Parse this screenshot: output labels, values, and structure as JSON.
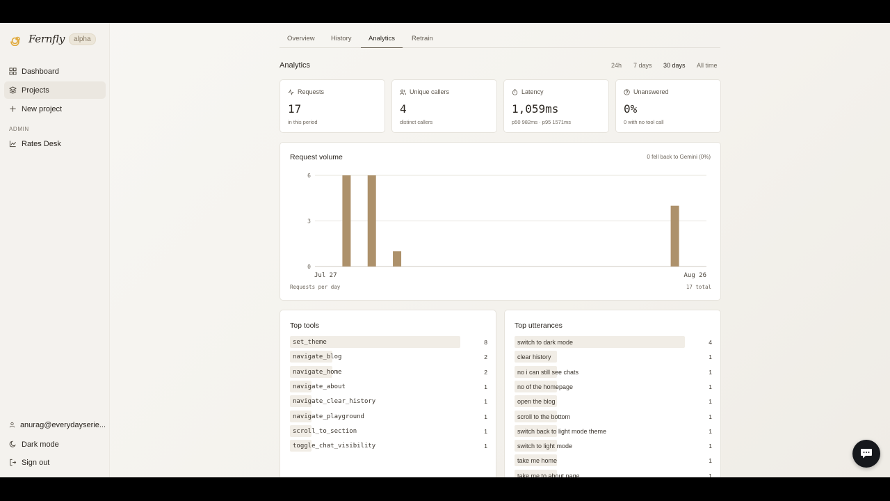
{
  "app": {
    "name": "Fernfly",
    "badge": "alpha"
  },
  "sidebar": {
    "items": [
      {
        "label": "Dashboard",
        "icon": "dashboard-icon"
      },
      {
        "label": "Projects",
        "icon": "layers-icon"
      },
      {
        "label": "New project",
        "icon": "plus-icon"
      }
    ],
    "admin_label": "ADMIN",
    "admin_items": [
      {
        "label": "Rates Desk",
        "icon": "chart-line-icon"
      }
    ],
    "footer": [
      {
        "label": "anurag@everydayserie...",
        "icon": "user-icon"
      },
      {
        "label": "Dark mode",
        "icon": "moon-icon"
      },
      {
        "label": "Sign out",
        "icon": "sign-out-icon"
      }
    ]
  },
  "tabs": [
    {
      "label": "Overview"
    },
    {
      "label": "History"
    },
    {
      "label": "Analytics",
      "active": true
    },
    {
      "label": "Retrain"
    }
  ],
  "analytics": {
    "title": "Analytics",
    "ranges": [
      "24h",
      "7 days",
      "30 days",
      "All time"
    ],
    "selected_range": "30 days"
  },
  "stats": [
    {
      "label": "Requests",
      "value": "17",
      "sub": "in this period",
      "icon": "activity-icon"
    },
    {
      "label": "Unique callers",
      "value": "4",
      "sub": "distinct callers",
      "icon": "users-icon"
    },
    {
      "label": "Latency",
      "value": "1,059ms",
      "sub": "p50 982ms · p95 1571ms",
      "icon": "timer-icon"
    },
    {
      "label": "Unanswered",
      "value": "0%",
      "sub": "0 with no tool call",
      "icon": "help-circle-icon"
    }
  ],
  "request_volume": {
    "title": "Request volume",
    "note": "0 fell back to Gemini (0%)",
    "caption": "Requests per day",
    "total": "17 total"
  },
  "chart_data": {
    "type": "bar",
    "x_start": "Jul 27",
    "x_end": "Aug 26",
    "categories": [
      "Jul 27",
      "Jul 28",
      "Jul 29",
      "Jul 30",
      "Jul 31",
      "Aug 1",
      "Aug 2",
      "Aug 3",
      "Aug 4",
      "Aug 5",
      "Aug 6",
      "Aug 7",
      "Aug 8",
      "Aug 9",
      "Aug 10",
      "Aug 11",
      "Aug 12",
      "Aug 13",
      "Aug 14",
      "Aug 15",
      "Aug 16",
      "Aug 17",
      "Aug 18",
      "Aug 19",
      "Aug 20",
      "Aug 21",
      "Aug 22",
      "Aug 23",
      "Aug 24",
      "Aug 25",
      "Aug 26"
    ],
    "values": [
      0,
      0,
      6,
      0,
      6,
      0,
      1,
      0,
      0,
      0,
      0,
      0,
      0,
      0,
      0,
      0,
      0,
      0,
      0,
      0,
      0,
      0,
      0,
      0,
      0,
      0,
      0,
      0,
      4,
      0,
      0
    ],
    "y_ticks": [
      0,
      3,
      6
    ],
    "ylim": [
      0,
      6
    ],
    "grid": true,
    "bar_color": "#ad916b"
  },
  "top_tools": {
    "title": "Top tools",
    "rows": [
      {
        "label": "set_theme",
        "count": 8
      },
      {
        "label": "navigate_blog",
        "count": 2
      },
      {
        "label": "navigate_home",
        "count": 2
      },
      {
        "label": "navigate_about",
        "count": 1
      },
      {
        "label": "navigate_clear_history",
        "count": 1
      },
      {
        "label": "navigate_playground",
        "count": 1
      },
      {
        "label": "scroll_to_section",
        "count": 1
      },
      {
        "label": "toggle_chat_visibility",
        "count": 1
      }
    ]
  },
  "top_utterances": {
    "title": "Top utterances",
    "rows": [
      {
        "label": "switch to dark mode",
        "count": 4
      },
      {
        "label": "clear history",
        "count": 1
      },
      {
        "label": "no i can still see chats",
        "count": 1
      },
      {
        "label": "no of the homepage",
        "count": 1
      },
      {
        "label": "open the blog",
        "count": 1
      },
      {
        "label": "scroll to the bottom",
        "count": 1
      },
      {
        "label": "switch back to light mode theme",
        "count": 1
      },
      {
        "label": "switch to light mode",
        "count": 1
      },
      {
        "label": "take me home",
        "count": 1
      },
      {
        "label": "take me to about page",
        "count": 1
      }
    ]
  },
  "chat_button": {
    "icon": "chat-bubble-icon"
  }
}
